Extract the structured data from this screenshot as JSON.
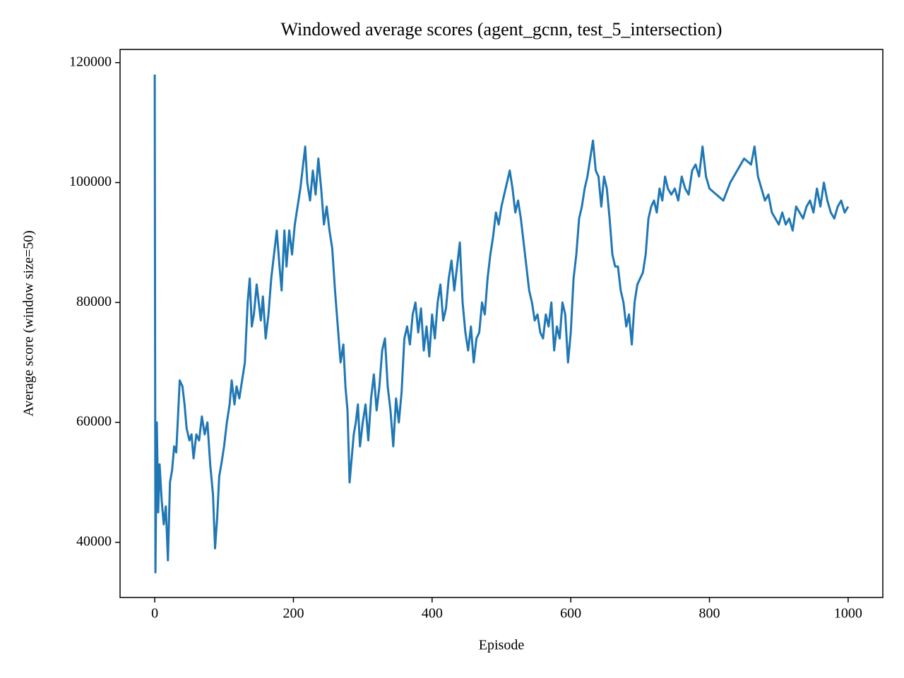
{
  "chart_data": {
    "type": "line",
    "title": "Windowed average scores (agent_gcnn, test_5_intersection)",
    "xlabel": "Episode",
    "ylabel": "Average score (window size=50)",
    "color": "#1f77b4",
    "xlim": [
      -50,
      1050
    ],
    "ylim": [
      30800,
      122200
    ],
    "xticks": [
      0,
      200,
      400,
      600,
      800,
      1000
    ],
    "yticks": [
      40000,
      60000,
      80000,
      100000,
      120000
    ],
    "grid": false,
    "x": [
      0,
      1,
      3,
      5,
      7,
      10,
      13,
      16,
      19,
      22,
      25,
      28,
      31,
      34,
      36,
      40,
      43,
      46,
      50,
      53,
      56,
      60,
      64,
      68,
      72,
      76,
      80,
      84,
      87,
      90,
      93,
      96,
      100,
      104,
      108,
      111,
      115,
      118,
      122,
      126,
      130,
      134,
      137,
      140,
      143,
      147,
      150,
      153,
      156,
      160,
      164,
      168,
      172,
      176,
      180,
      183,
      187,
      190,
      194,
      198,
      202,
      206,
      210,
      214,
      217,
      220,
      224,
      228,
      232,
      236,
      240,
      244,
      248,
      252,
      256,
      260,
      264,
      268,
      272,
      275,
      278,
      281,
      284,
      287,
      290,
      293,
      296,
      300,
      304,
      308,
      312,
      316,
      320,
      324,
      328,
      332,
      336,
      340,
      344,
      348,
      352,
      356,
      360,
      364,
      368,
      372,
      376,
      380,
      384,
      388,
      392,
      396,
      400,
      404,
      408,
      412,
      416,
      420,
      424,
      428,
      432,
      436,
      440,
      444,
      448,
      452,
      456,
      460,
      464,
      468,
      472,
      476,
      480,
      484,
      488,
      492,
      496,
      500,
      504,
      508,
      512,
      516,
      520,
      524,
      528,
      532,
      536,
      540,
      544,
      548,
      552,
      556,
      560,
      564,
      568,
      572,
      576,
      580,
      584,
      588,
      592,
      596,
      600,
      604,
      608,
      612,
      616,
      620,
      624,
      628,
      632,
      636,
      640,
      644,
      648,
      652,
      656,
      660,
      664,
      668,
      672,
      676,
      680,
      684,
      688,
      692,
      696,
      700,
      704,
      708,
      712,
      716,
      720,
      724,
      728,
      732,
      736,
      740,
      745,
      750,
      755,
      760,
      765,
      770,
      775,
      780,
      785,
      790,
      795,
      800,
      810,
      820,
      830,
      840,
      850,
      860,
      865,
      870,
      875,
      880,
      885,
      890,
      895,
      900,
      905,
      910,
      915,
      920,
      925,
      930,
      935,
      940,
      945,
      950,
      955,
      960,
      965,
      970,
      975,
      980,
      985,
      990,
      995,
      1000
    ],
    "values": [
      118000,
      35000,
      60000,
      45000,
      53000,
      47000,
      43000,
      46000,
      37000,
      50000,
      52000,
      56000,
      55000,
      62000,
      67000,
      66000,
      63000,
      59000,
      57000,
      58000,
      54000,
      58000,
      57000,
      61000,
      58000,
      60000,
      53000,
      48000,
      39000,
      44000,
      51000,
      53000,
      56000,
      60000,
      63000,
      67000,
      63000,
      66000,
      64000,
      67000,
      70000,
      80000,
      84000,
      76000,
      78000,
      83000,
      80000,
      77000,
      81000,
      74000,
      78000,
      84000,
      88000,
      92000,
      86000,
      82000,
      92000,
      86000,
      92000,
      88000,
      93000,
      96000,
      99000,
      103000,
      106000,
      100000,
      97000,
      102000,
      98000,
      104000,
      99000,
      93000,
      96000,
      92000,
      89000,
      82000,
      76000,
      70000,
      73000,
      66000,
      62000,
      50000,
      54000,
      58000,
      60000,
      63000,
      56000,
      60000,
      63000,
      57000,
      64000,
      68000,
      62000,
      66000,
      72000,
      74000,
      66000,
      62000,
      56000,
      64000,
      60000,
      65000,
      74000,
      76000,
      73000,
      78000,
      80000,
      75000,
      79000,
      72000,
      76000,
      71000,
      78000,
      74000,
      80000,
      83000,
      77000,
      79000,
      84000,
      87000,
      82000,
      86000,
      90000,
      80000,
      75000,
      72000,
      76000,
      70000,
      74000,
      75000,
      80000,
      78000,
      84000,
      88000,
      91000,
      95000,
      93000,
      96000,
      98000,
      100000,
      102000,
      99000,
      95000,
      97000,
      94000,
      90000,
      86000,
      82000,
      80000,
      77000,
      78000,
      75000,
      74000,
      78000,
      76000,
      80000,
      72000,
      76000,
      74000,
      80000,
      78000,
      70000,
      75000,
      84000,
      88000,
      94000,
      96000,
      99000,
      101000,
      104000,
      107000,
      102000,
      101000,
      96000,
      101000,
      99000,
      94000,
      88000,
      86000,
      86000,
      82000,
      80000,
      76000,
      78000,
      73000,
      80000,
      83000,
      84000,
      85000,
      88000,
      94000,
      96000,
      97000,
      95000,
      99000,
      97000,
      101000,
      99000,
      98000,
      99000,
      97000,
      101000,
      99000,
      98000,
      102000,
      103000,
      101000,
      106000,
      101000,
      99000,
      98000,
      97000,
      100000,
      102000,
      104000,
      103000,
      106000,
      101000,
      99000,
      97000,
      98000,
      95000,
      94000,
      93000,
      95000,
      93000,
      94000,
      92000,
      96000,
      95000,
      94000,
      96000,
      97000,
      95000,
      99000,
      96000,
      100000,
      97000,
      95000,
      94000,
      96000,
      97000,
      95000,
      96000
    ]
  }
}
